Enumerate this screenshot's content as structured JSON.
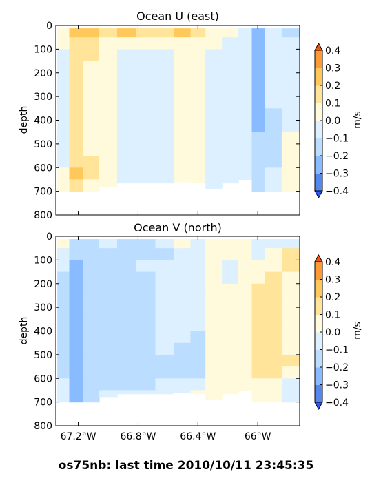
{
  "caption": "os75nb: last time 2010/10/11 23:45:35",
  "chart_data": [
    {
      "type": "heatmap",
      "title": "Ocean U (east)",
      "ylabel": "depth",
      "xlabel": "",
      "ylim": [
        800,
        0
      ],
      "yticks": [
        "0",
        "100",
        "200",
        "300",
        "400",
        "500",
        "600",
        "700",
        "800"
      ],
      "xlim": [
        -67.35,
        -65.72
      ],
      "xticks": [],
      "colorbar": {
        "label": "m/s",
        "ticks": [
          "0.4",
          "0.3",
          "0.2",
          "0.1",
          "0.0",
          "−0.1",
          "−0.2",
          "−0.3",
          "−0.4"
        ]
      },
      "levels": [
        -0.4,
        -0.3,
        -0.2,
        -0.1,
        0.0,
        0.1,
        0.2,
        0.3,
        0.4
      ],
      "colors": [
        "#3355ff",
        "#5588ee",
        "#88bbff",
        "#bbddff",
        "#ddf0ff",
        "#fffadc",
        "#ffe49a",
        "#ffc85a",
        "#ff9933",
        "#ee5511"
      ],
      "depth_bins": [
        25,
        75,
        125,
        175,
        225,
        275,
        325,
        375,
        425,
        475,
        525,
        575,
        625,
        675
      ],
      "bottom_depth": [
        720,
        715,
        700,
        680,
        665,
        665,
        665,
        660,
        665,
        690,
        665,
        650,
        700,
        700
      ],
      "columns": [
        {
          "lon": -67.3,
          "values": [
            0.05,
            0.03,
            0.0,
            -0.02,
            -0.03,
            -0.03,
            -0.02,
            -0.02,
            -0.03,
            -0.02,
            -0.01,
            0.0,
            0.02,
            0.03
          ]
        },
        {
          "lon": -67.22,
          "values": [
            0.25,
            0.18,
            0.15,
            0.15,
            0.18,
            0.15,
            0.17,
            0.18,
            0.16,
            0.16,
            0.17,
            0.17,
            0.22,
            0.2
          ]
        },
        {
          "lon": -67.12,
          "values": [
            0.25,
            0.15,
            0.12,
            0.08,
            0.09,
            0.07,
            0.05,
            0.05,
            0.06,
            0.05,
            0.05,
            0.12,
            0.15,
            0.1
          ]
        },
        {
          "lon": -67.0,
          "values": [
            0.18,
            0.1,
            0.05,
            0.03,
            0.02,
            0.02,
            0.03,
            0.02,
            0.02,
            0.03,
            0.02,
            0.03,
            0.05,
            0.05
          ]
        },
        {
          "lon": -66.88,
          "values": [
            0.22,
            0.06,
            -0.03,
            -0.05,
            -0.03,
            -0.02,
            -0.02,
            -0.03,
            -0.03,
            -0.04,
            -0.03,
            -0.02,
            -0.03,
            -0.03
          ]
        },
        {
          "lon": -66.75,
          "values": [
            0.15,
            0.02,
            -0.04,
            -0.05,
            -0.04,
            -0.03,
            -0.03,
            -0.04,
            -0.03,
            -0.03,
            -0.03,
            -0.02,
            -0.03,
            -0.02
          ]
        },
        {
          "lon": -66.62,
          "values": [
            0.12,
            0.03,
            -0.02,
            -0.03,
            -0.02,
            -0.02,
            -0.03,
            -0.03,
            -0.03,
            -0.02,
            -0.03,
            -0.02,
            -0.03,
            -0.03
          ]
        },
        {
          "lon": -66.5,
          "values": [
            0.25,
            0.05,
            0.03,
            0.05,
            0.03,
            0.02,
            0.03,
            0.02,
            0.03,
            0.02,
            0.04,
            0.03,
            0.04,
            0.05
          ]
        },
        {
          "lon": -66.4,
          "values": [
            0.15,
            0.08,
            0.05,
            0.05,
            0.05,
            0.06,
            0.05,
            0.05,
            0.04,
            0.05,
            0.04,
            0.05,
            0.05,
            0.05
          ]
        },
        {
          "lon": -66.3,
          "values": [
            0.08,
            0.02,
            -0.02,
            -0.03,
            -0.02,
            -0.02,
            -0.02,
            -0.02,
            -0.03,
            -0.02,
            -0.02,
            -0.02,
            -0.03,
            -0.02
          ]
        },
        {
          "lon": -66.18,
          "values": [
            0.1,
            -0.02,
            -0.05,
            -0.05,
            -0.04,
            -0.05,
            -0.04,
            -0.05,
            -0.04,
            -0.05,
            -0.05,
            -0.06,
            -0.05,
            -0.05
          ]
        },
        {
          "lon": -66.08,
          "values": [
            -0.05,
            -0.02,
            -0.03,
            -0.03,
            -0.04,
            -0.03,
            -0.04,
            -0.03,
            -0.03,
            -0.04,
            -0.03,
            -0.02,
            -0.03,
            -0.03
          ]
        },
        {
          "lon": -66.0,
          "values": [
            -0.25,
            -0.22,
            -0.25,
            -0.28,
            -0.28,
            -0.25,
            -0.25,
            -0.22,
            -0.2,
            -0.18,
            -0.15,
            -0.15,
            -0.12,
            -0.12
          ]
        },
        {
          "lon": -65.9,
          "values": [
            -0.08,
            -0.08,
            -0.07,
            -0.05,
            -0.05,
            -0.05,
            -0.08,
            -0.1,
            -0.12,
            -0.13,
            -0.12,
            -0.1,
            -0.08,
            -0.05
          ]
        },
        {
          "lon": -65.78,
          "values": [
            -0.1,
            -0.05,
            -0.04,
            -0.03,
            -0.04,
            -0.03,
            -0.04,
            -0.03,
            -0.03,
            0.05,
            0.03,
            0.05,
            0.05,
            0.05
          ]
        }
      ]
    },
    {
      "type": "heatmap",
      "title": "Ocean V (north)",
      "ylabel": "depth",
      "xlabel": "",
      "ylim": [
        800,
        0
      ],
      "yticks": [
        "0",
        "100",
        "200",
        "300",
        "400",
        "500",
        "600",
        "700",
        "800"
      ],
      "xlim": [
        -67.35,
        -65.72
      ],
      "xticks": [
        "67.2°W",
        "66.8°W",
        "66.4°W",
        "66°W"
      ],
      "xtick_lons": [
        -67.2,
        -66.8,
        -66.4,
        -66.0
      ],
      "colorbar": {
        "label": "m/s",
        "ticks": [
          "0.4",
          "0.3",
          "0.2",
          "0.1",
          "0.0",
          "−0.1",
          "−0.2",
          "−0.3",
          "−0.4"
        ]
      },
      "levels": [
        -0.4,
        -0.3,
        -0.2,
        -0.1,
        0.0,
        0.1,
        0.2,
        0.3,
        0.4
      ],
      "colors": [
        "#3355ff",
        "#5588ee",
        "#88bbff",
        "#bbddff",
        "#ddf0ff",
        "#fffadc",
        "#ffe49a",
        "#ffc85a",
        "#ff9933",
        "#ee5511"
      ],
      "depth_bins": [
        25,
        75,
        125,
        175,
        225,
        275,
        325,
        375,
        425,
        475,
        525,
        575,
        625,
        675
      ],
      "bottom_depth": [
        720,
        715,
        700,
        680,
        665,
        665,
        665,
        660,
        665,
        690,
        665,
        650,
        700,
        700
      ],
      "columns": [
        {
          "lon": -67.3,
          "values": [
            0.05,
            -0.05,
            -0.08,
            -0.1,
            -0.12,
            -0.1,
            -0.12,
            -0.12,
            -0.1,
            -0.12,
            -0.1,
            -0.12,
            -0.08,
            -0.05
          ]
        },
        {
          "lon": -67.22,
          "values": [
            -0.15,
            -0.18,
            -0.22,
            -0.25,
            -0.28,
            -0.28,
            -0.27,
            -0.26,
            -0.26,
            -0.26,
            -0.25,
            -0.25,
            -0.26,
            -0.24
          ]
        },
        {
          "lon": -67.12,
          "values": [
            -0.1,
            -0.15,
            -0.12,
            -0.14,
            -0.13,
            -0.15,
            -0.13,
            -0.14,
            -0.15,
            -0.14,
            -0.13,
            -0.14,
            -0.12,
            -0.1
          ]
        },
        {
          "lon": -67.0,
          "values": [
            -0.05,
            -0.12,
            -0.15,
            -0.12,
            -0.14,
            -0.12,
            -0.13,
            -0.12,
            -0.14,
            -0.15,
            -0.12,
            -0.13,
            -0.1,
            -0.08
          ]
        },
        {
          "lon": -66.88,
          "values": [
            -0.12,
            -0.18,
            -0.15,
            -0.13,
            -0.14,
            -0.12,
            -0.15,
            -0.12,
            -0.13,
            -0.12,
            -0.14,
            -0.12,
            -0.1,
            -0.08
          ]
        },
        {
          "lon": -66.75,
          "values": [
            -0.1,
            -0.12,
            -0.08,
            -0.1,
            -0.12,
            -0.12,
            -0.13,
            -0.12,
            -0.12,
            -0.15,
            -0.14,
            -0.12,
            -0.1,
            -0.08
          ]
        },
        {
          "lon": -66.62,
          "values": [
            -0.08,
            -0.1,
            -0.05,
            -0.04,
            -0.05,
            -0.03,
            -0.04,
            -0.05,
            -0.04,
            -0.05,
            -0.1,
            -0.12,
            -0.08,
            -0.05
          ]
        },
        {
          "lon": -66.5,
          "values": [
            0.02,
            -0.03,
            -0.02,
            -0.04,
            -0.03,
            -0.04,
            -0.03,
            -0.05,
            -0.08,
            -0.12,
            -0.13,
            -0.12,
            -0.05,
            -0.03
          ]
        },
        {
          "lon": -66.4,
          "values": [
            -0.03,
            -0.05,
            -0.03,
            -0.02,
            -0.03,
            -0.02,
            -0.04,
            -0.05,
            -0.1,
            -0.12,
            -0.12,
            -0.1,
            -0.03,
            0.02
          ]
        },
        {
          "lon": -66.3,
          "values": [
            0.03,
            0.02,
            0.03,
            0.02,
            0.03,
            0.05,
            0.04,
            0.03,
            0.03,
            0.02,
            0.03,
            0.03,
            0.02,
            0.03
          ]
        },
        {
          "lon": -66.18,
          "values": [
            0.05,
            0.04,
            -0.03,
            -0.02,
            0.03,
            0.04,
            0.05,
            0.03,
            0.05,
            0.04,
            0.03,
            0.02,
            0.03,
            0.04
          ]
        },
        {
          "lon": -66.08,
          "values": [
            0.02,
            0.03,
            0.02,
            0.03,
            0.04,
            0.03,
            0.04,
            0.03,
            0.05,
            0.04,
            0.03,
            0.04,
            0.05,
            0.04
          ]
        },
        {
          "lon": -66.0,
          "values": [
            -0.05,
            -0.03,
            0.03,
            0.08,
            0.12,
            0.15,
            0.16,
            0.18,
            0.15,
            0.17,
            0.16,
            0.12,
            0.1,
            0.05
          ]
        },
        {
          "lon": -65.9,
          "values": [
            -0.05,
            0.02,
            0.05,
            0.15,
            0.18,
            0.18,
            0.17,
            0.15,
            0.14,
            0.16,
            0.15,
            0.12,
            0.06,
            0.03
          ]
        },
        {
          "lon": -65.78,
          "values": [
            -0.03,
            0.12,
            0.15,
            0.1,
            0.05,
            0.05,
            0.05,
            0.05,
            0.08,
            0.1,
            0.12,
            0.08,
            -0.05,
            -0.05
          ]
        }
      ]
    }
  ]
}
